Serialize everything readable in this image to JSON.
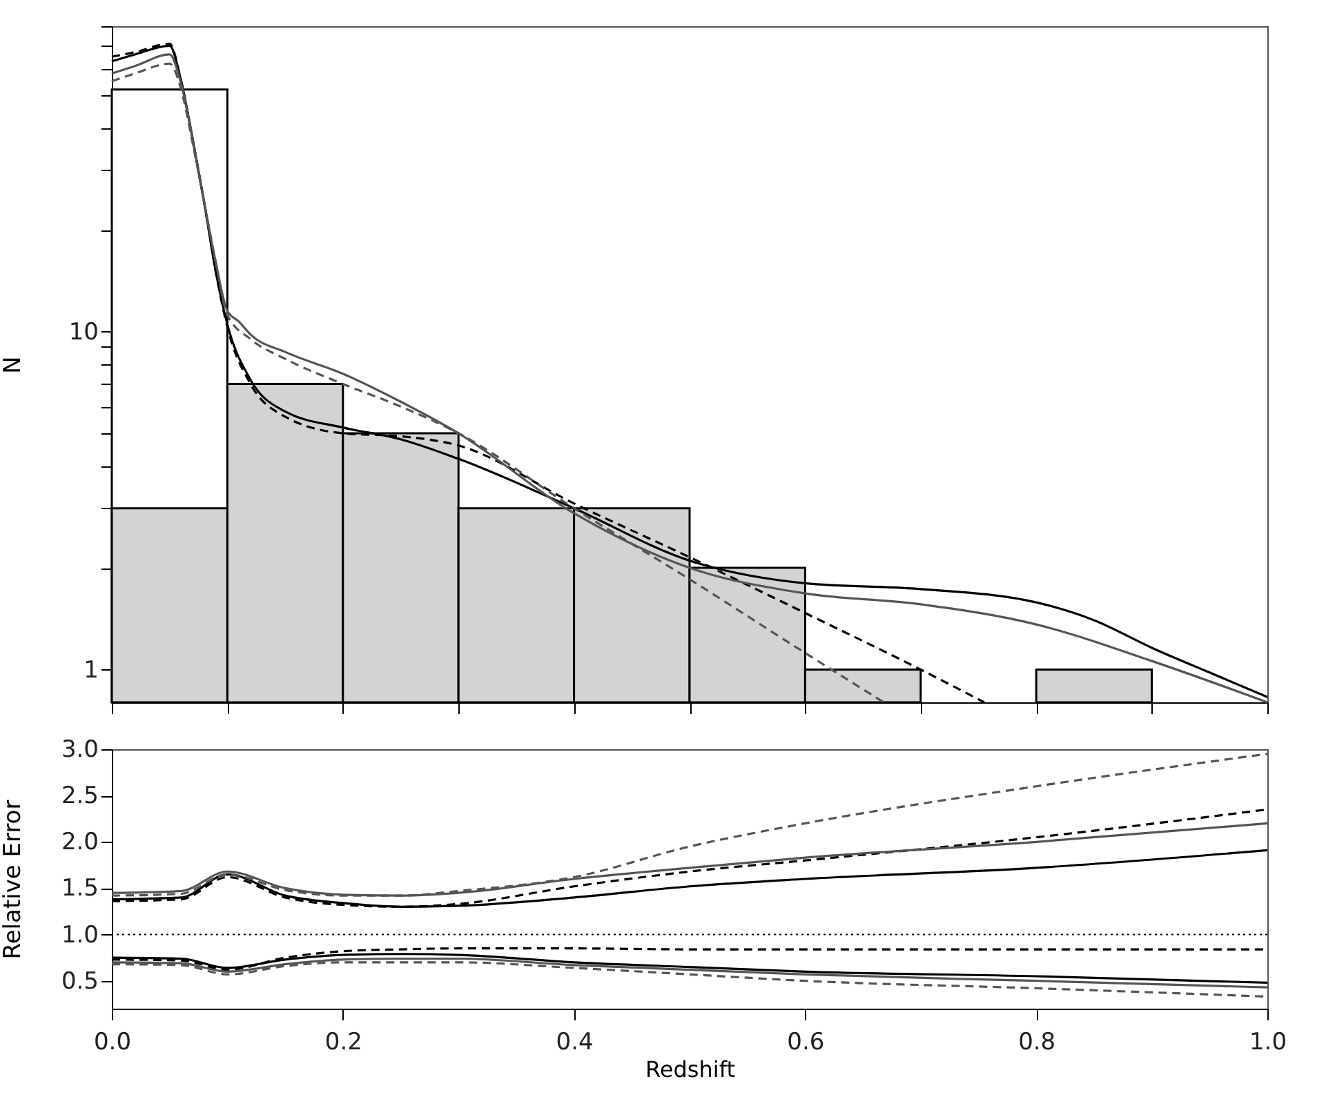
{
  "chart_data": [
    {
      "type": "histogram",
      "ylabel": "N",
      "log": "y",
      "xlim": [
        0,
        1
      ],
      "ylim": [
        0.8,
        80
      ],
      "yticks": [
        1,
        {
          "value": 2,
          "label": null
        },
        {
          "value": 3,
          "label": null
        },
        {
          "value": 4,
          "label": null
        },
        {
          "value": 5,
          "label": null
        },
        {
          "value": 6,
          "label": null
        },
        {
          "value": 7,
          "label": null
        },
        {
          "value": 8,
          "label": null
        },
        {
          "value": 9,
          "label": null
        },
        10,
        {
          "value": 20,
          "label": null
        },
        {
          "value": 30,
          "label": null
        },
        {
          "value": 40,
          "label": null
        },
        {
          "value": 50,
          "label": null
        },
        {
          "value": 60,
          "label": null
        },
        {
          "value": 70,
          "label": null
        },
        {
          "value": 80,
          "label": null
        }
      ],
      "tick_labels": "y",
      "grid": false,
      "bins": [
        0,
        0.1,
        0.2,
        0.3,
        0.4,
        0.5,
        0.6,
        0.7,
        0.8,
        0.9,
        1
      ],
      "series": [
        {
          "color": "#ffffff",
          "values": [
            52,
            null,
            null,
            null,
            null,
            null,
            null,
            null,
            null,
            null
          ]
        },
        {
          "color": "#d3d3d3",
          "values": [
            3,
            7,
            5,
            3,
            3,
            2,
            1,
            null,
            1,
            null
          ]
        },
        {
          "type": "line",
          "color": "#000000",
          "line_style": "solid",
          "x": [
            0,
            0.02,
            0.05,
            0.06,
            0.07,
            0.08,
            0.09,
            0.1,
            0.12,
            0.15,
            0.2,
            0.25,
            0.3,
            0.4,
            0.5,
            0.6,
            0.7,
            0.8,
            0.85,
            0.9,
            0.95,
            1.0
          ],
          "values": [
            63,
            66,
            70,
            55,
            37,
            24,
            15,
            10.5,
            7.2,
            5.8,
            5.2,
            4.8,
            4.2,
            3.0,
            2.1,
            1.8,
            1.73,
            1.58,
            1.4,
            1.16,
            0.98,
            0.83
          ]
        },
        {
          "type": "line",
          "color": "#000000",
          "line_style": "dashed",
          "x": [
            0,
            0.02,
            0.05,
            0.06,
            0.07,
            0.08,
            0.09,
            0.1,
            0.12,
            0.15,
            0.2,
            0.25,
            0.3,
            0.4,
            0.5,
            0.6,
            0.7,
            0.755
          ],
          "values": [
            65,
            67,
            71,
            55,
            37,
            24,
            15,
            10.3,
            7,
            5.6,
            5.0,
            4.9,
            4.6,
            3.1,
            2.15,
            1.47,
            1.0,
            0.8
          ]
        },
        {
          "type": "line",
          "color": "#555555",
          "line_style": "solid",
          "x": [
            0,
            0.02,
            0.05,
            0.06,
            0.07,
            0.08,
            0.09,
            0.1,
            0.11,
            0.12,
            0.15,
            0.2,
            0.25,
            0.3,
            0.4,
            0.5,
            0.6,
            0.7,
            0.8,
            0.9,
            1.0
          ],
          "values": [
            58,
            61,
            66,
            54,
            37,
            24,
            16,
            11.5,
            10.7,
            9.8,
            8.7,
            7.5,
            6.2,
            5.0,
            2.9,
            2.0,
            1.68,
            1.56,
            1.36,
            1.06,
            0.8
          ]
        },
        {
          "type": "line",
          "color": "#555555",
          "line_style": "dashed",
          "x": [
            0,
            0.02,
            0.05,
            0.06,
            0.07,
            0.08,
            0.09,
            0.1,
            0.12,
            0.15,
            0.2,
            0.25,
            0.3,
            0.4,
            0.5,
            0.6,
            0.668
          ],
          "values": [
            55,
            58,
            62,
            52,
            36,
            24,
            16,
            11.2,
            9.5,
            8.3,
            7.0,
            6.0,
            5.0,
            3.0,
            1.85,
            1.12,
            0.8
          ]
        }
      ]
    },
    {
      "type": "line",
      "xlabel": "Redshift",
      "ylabel": "Relative Error",
      "xlim": [
        0,
        1
      ],
      "xticks": [
        {
          "value": 0,
          "label": "0.0"
        },
        {
          "value": 0.2,
          "label": "0.2"
        },
        {
          "value": 0.4,
          "label": "0.4"
        },
        {
          "value": 0.6,
          "label": "0.6"
        },
        {
          "value": 0.8,
          "label": "0.8"
        },
        {
          "value": 1,
          "label": "1.0"
        }
      ],
      "ylim": [
        0.2,
        3.0
      ],
      "yticks": [
        {
          "value": 0.5,
          "label": "0.5"
        },
        {
          "value": 1,
          "label": "1.0"
        },
        {
          "value": 1.5,
          "label": "1.5"
        },
        {
          "value": 2,
          "label": "2.0"
        },
        {
          "value": 2.5,
          "label": "2.5"
        },
        {
          "value": 3,
          "label": "3.0"
        }
      ],
      "grid": false,
      "ref_lines": [
        {
          "axis": "y",
          "value": 1,
          "color": "#000000",
          "line_style": "dotted"
        }
      ],
      "x": [
        0,
        0.06,
        0.1,
        0.15,
        0.2,
        0.25,
        0.3,
        0.4,
        0.5,
        0.6,
        0.8,
        1.0
      ],
      "series": [
        {
          "color": "#000000",
          "line_style": "solid",
          "values": [
            1.38,
            1.4,
            1.65,
            1.42,
            1.34,
            1.3,
            1.31,
            1.4,
            1.52,
            1.6,
            1.72,
            1.91
          ]
        },
        {
          "color": "#000000",
          "line_style": "dashed",
          "values": [
            1.36,
            1.38,
            1.62,
            1.4,
            1.32,
            1.3,
            1.33,
            1.52,
            1.68,
            1.8,
            2.05,
            2.35
          ]
        },
        {
          "color": "#555555",
          "line_style": "solid",
          "values": [
            1.45,
            1.47,
            1.68,
            1.5,
            1.43,
            1.42,
            1.45,
            1.6,
            1.72,
            1.83,
            2.0,
            2.2
          ]
        },
        {
          "color": "#555555",
          "line_style": "dashed",
          "values": [
            1.42,
            1.44,
            1.65,
            1.48,
            1.42,
            1.42,
            1.47,
            1.62,
            1.95,
            2.2,
            2.6,
            2.95
          ]
        },
        {
          "color": "#000000",
          "line_style": "solid",
          "values": [
            0.75,
            0.74,
            0.64,
            0.73,
            0.78,
            0.79,
            0.78,
            0.7,
            0.65,
            0.6,
            0.55,
            0.48
          ]
        },
        {
          "color": "#000000",
          "line_style": "dashed",
          "values": [
            0.73,
            0.72,
            0.62,
            0.75,
            0.82,
            0.84,
            0.85,
            0.85,
            0.84,
            0.84,
            0.84,
            0.84
          ]
        },
        {
          "color": "#555555",
          "line_style": "solid",
          "values": [
            0.7,
            0.69,
            0.6,
            0.68,
            0.73,
            0.74,
            0.74,
            0.67,
            0.62,
            0.57,
            0.5,
            0.43
          ]
        },
        {
          "color": "#555555",
          "line_style": "dashed",
          "values": [
            0.68,
            0.67,
            0.57,
            0.66,
            0.7,
            0.7,
            0.7,
            0.64,
            0.57,
            0.5,
            0.42,
            0.33
          ]
        }
      ]
    }
  ]
}
